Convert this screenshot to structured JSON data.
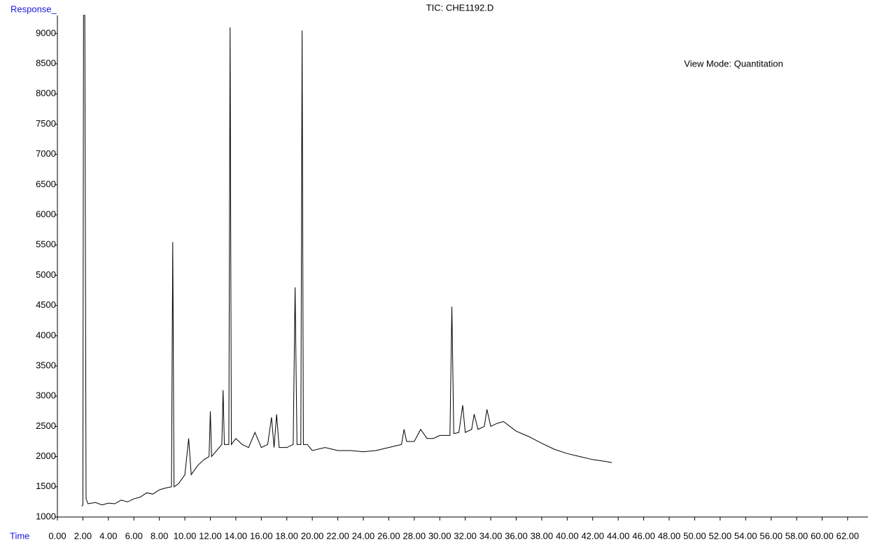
{
  "chart_data": {
    "type": "line",
    "title": "TIC: CHE1192.D",
    "y_label": "Response_",
    "x_label": "Time",
    "annotation": "View Mode: Quantitation",
    "color": "#000000",
    "label_color": "#1a1adb",
    "xlim": [
      0,
      63.6
    ],
    "ylim": [
      1000,
      9300
    ],
    "xticks": [
      {
        "value": 0,
        "label": "0.00"
      },
      {
        "value": 2,
        "label": "2.00"
      },
      {
        "value": 4,
        "label": "4.00"
      },
      {
        "value": 6,
        "label": "6.00"
      },
      {
        "value": 8,
        "label": "8.00"
      },
      {
        "value": 10,
        "label": "10.00"
      },
      {
        "value": 12,
        "label": "12.00"
      },
      {
        "value": 14,
        "label": "14.00"
      },
      {
        "value": 16,
        "label": "16.00"
      },
      {
        "value": 18,
        "label": "18.00"
      },
      {
        "value": 20,
        "label": "20.00"
      },
      {
        "value": 22,
        "label": "22.00"
      },
      {
        "value": 24,
        "label": "24.00"
      },
      {
        "value": 26,
        "label": "26.00"
      },
      {
        "value": 28,
        "label": "28.00"
      },
      {
        "value": 30,
        "label": "30.00"
      },
      {
        "value": 32,
        "label": "32.00"
      },
      {
        "value": 34,
        "label": "34.00"
      },
      {
        "value": 36,
        "label": "36.00"
      },
      {
        "value": 38,
        "label": "38.00"
      },
      {
        "value": 40,
        "label": "40.00"
      },
      {
        "value": 42,
        "label": "42.00"
      },
      {
        "value": 44,
        "label": "44.00"
      },
      {
        "value": 46,
        "label": "46.00"
      },
      {
        "value": 48,
        "label": "48.00"
      },
      {
        "value": 50,
        "label": "50.00"
      },
      {
        "value": 52,
        "label": "52.00"
      },
      {
        "value": 54,
        "label": "54.00"
      },
      {
        "value": 56,
        "label": "56.00"
      },
      {
        "value": 58,
        "label": "58.00"
      },
      {
        "value": 60,
        "label": "60.00"
      },
      {
        "value": 62,
        "label": "62.00"
      }
    ],
    "yticks": [
      1000,
      1500,
      2000,
      2500,
      3000,
      3500,
      4000,
      4500,
      5000,
      5500,
      6000,
      6500,
      7000,
      7500,
      8000,
      8500,
      9000
    ],
    "x": [
      1.9,
      2.0,
      2.05,
      2.15,
      2.25,
      2.4,
      3.0,
      3.5,
      4.0,
      4.5,
      5.0,
      5.5,
      6.0,
      6.5,
      7.0,
      7.5,
      8.0,
      8.5,
      8.95,
      9.05,
      9.15,
      9.5,
      10.0,
      10.3,
      10.5,
      11.0,
      11.5,
      11.9,
      12.0,
      12.1,
      12.5,
      12.9,
      13.0,
      13.1,
      13.45,
      13.55,
      13.65,
      14.0,
      14.5,
      15.0,
      15.5,
      16.0,
      16.5,
      16.8,
      17.0,
      17.2,
      17.4,
      18.0,
      18.5,
      18.65,
      18.8,
      19.1,
      19.2,
      19.3,
      19.6,
      20.0,
      21.0,
      22.0,
      23.0,
      24.0,
      25.0,
      26.0,
      27.0,
      27.2,
      27.4,
      28.0,
      28.5,
      29.0,
      29.5,
      30.0,
      30.8,
      30.95,
      31.1,
      31.5,
      31.8,
      32.0,
      32.5,
      32.7,
      33.0,
      33.5,
      33.7,
      34.0,
      34.5,
      35.0,
      35.5,
      36.0,
      37.0,
      38.0,
      39.0,
      40.0,
      41.0,
      42.0,
      43.0,
      43.5
    ],
    "values": [
      1180,
      1200,
      9300,
      9300,
      1300,
      1220,
      1240,
      1200,
      1230,
      1220,
      1280,
      1250,
      1300,
      1330,
      1400,
      1380,
      1450,
      1480,
      1500,
      5550,
      1500,
      1550,
      1700,
      2300,
      1700,
      1850,
      1950,
      2000,
      2750,
      2000,
      2100,
      2200,
      3100,
      2200,
      2200,
      9100,
      2200,
      2300,
      2200,
      2150,
      2400,
      2150,
      2200,
      2650,
      2150,
      2700,
      2150,
      2150,
      2200,
      4800,
      2200,
      2200,
      9050,
      2200,
      2200,
      2100,
      2150,
      2100,
      2100,
      2080,
      2100,
      2150,
      2200,
      2450,
      2250,
      2250,
      2450,
      2300,
      2300,
      2350,
      2350,
      4480,
      2380,
      2400,
      2850,
      2400,
      2450,
      2700,
      2450,
      2500,
      2780,
      2500,
      2550,
      2580,
      2500,
      2420,
      2330,
      2220,
      2120,
      2050,
      2000,
      1950,
      1920,
      1900
    ]
  }
}
